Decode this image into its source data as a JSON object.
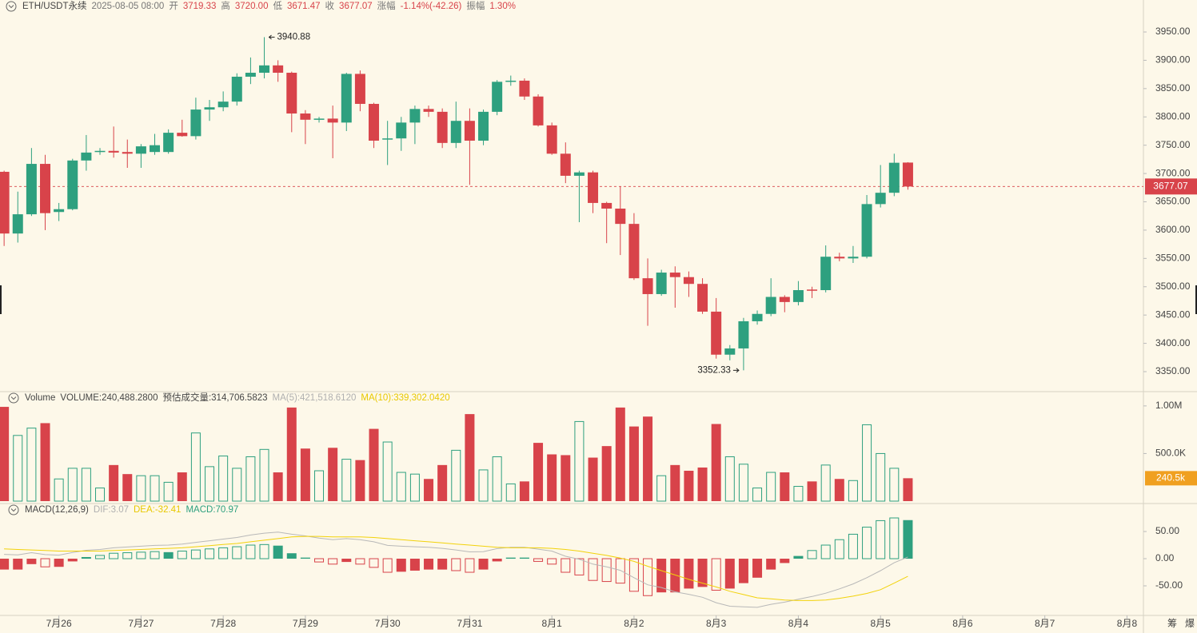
{
  "chart_data": [
    {
      "type": "candlestick",
      "header": [
        {
          "text": "ETH/USDT永续",
          "color": "#444444"
        },
        {
          "text": "2025-08-05 08:00",
          "color": "#777777"
        },
        {
          "text": "开",
          "color": "#777777"
        },
        {
          "text": "3719.33",
          "color": "#d8434a"
        },
        {
          "text": "高",
          "color": "#777777"
        },
        {
          "text": "3720.00",
          "color": "#d8434a"
        },
        {
          "text": "低",
          "color": "#777777"
        },
        {
          "text": "3671.47",
          "color": "#d8434a"
        },
        {
          "text": "收",
          "color": "#777777"
        },
        {
          "text": "3677.07",
          "color": "#d8434a"
        },
        {
          "text": "涨幅",
          "color": "#777777"
        },
        {
          "text": "-1.14%(-42.26)",
          "color": "#d8434a"
        },
        {
          "text": "振幅",
          "color": "#777777"
        },
        {
          "text": "1.30%",
          "color": "#d8434a"
        }
      ],
      "up_color": "#2ea07f",
      "down_color": "#d8434a",
      "open": [
        3703,
        3594,
        3628,
        3717,
        3632,
        3637,
        3723,
        3738,
        3740,
        3738,
        3735,
        3738,
        3738,
        3772,
        3766,
        3813,
        3817,
        3827,
        3871,
        3878,
        3891,
        3878,
        3806,
        3795,
        3797,
        3790,
        3876,
        3823,
        3761,
        3762,
        3790,
        3814,
        3809,
        3754,
        3793,
        3758,
        3809,
        3862,
        3864,
        3836,
        3785,
        3735,
        3696,
        3702,
        3648,
        3638,
        3611,
        3515,
        3487,
        3525,
        3517,
        3505,
        3456,
        3380,
        3391,
        3439,
        3452,
        3482,
        3473,
        3495,
        3494,
        3553,
        3550,
        3553,
        3646,
        3666,
        3719.33
      ],
      "high": [
        3705,
        3668,
        3745,
        3733,
        3648,
        3726,
        3768,
        3745,
        3783,
        3760,
        3752,
        3770,
        3778,
        3795,
        3834,
        3830,
        3845,
        3877,
        3905,
        3940.88,
        3900,
        3880,
        3812,
        3800,
        3820,
        3878,
        3882,
        3825,
        3793,
        3800,
        3820,
        3820,
        3815,
        3827,
        3815,
        3813,
        3865,
        3873,
        3868,
        3840,
        3790,
        3755,
        3705,
        3705,
        3650,
        3677,
        3630,
        3550,
        3530,
        3536,
        3527,
        3515,
        3480,
        3397,
        3445,
        3458,
        3515,
        3485,
        3510,
        3500,
        3573,
        3560,
        3572,
        3662,
        3715,
        3735,
        3720
      ],
      "low": [
        3572,
        3578,
        3625,
        3600,
        3616,
        3635,
        3705,
        3733,
        3728,
        3710,
        3710,
        3733,
        3735,
        3765,
        3760,
        3793,
        3810,
        3820,
        3858,
        3868,
        3862,
        3773,
        3752,
        3790,
        3727,
        3775,
        3810,
        3745,
        3715,
        3740,
        3752,
        3800,
        3745,
        3745,
        3680,
        3750,
        3803,
        3855,
        3830,
        3783,
        3733,
        3683,
        3614,
        3630,
        3577,
        3556,
        3512,
        3431,
        3484,
        3463,
        3482,
        3452,
        3373,
        3370,
        3352.33,
        3433,
        3448,
        3455,
        3467,
        3480,
        3490,
        3545,
        3542,
        3550,
        3640,
        3660,
        3671.47
      ],
      "close": [
        3594,
        3628,
        3717,
        3630,
        3637,
        3723,
        3737,
        3740,
        3737,
        3735,
        3748,
        3750,
        3772,
        3766,
        3813,
        3817,
        3827,
        3871,
        3878,
        3891,
        3878,
        3806,
        3795,
        3797,
        3790,
        3876,
        3823,
        3758,
        3762,
        3790,
        3814,
        3809,
        3754,
        3793,
        3758,
        3809,
        3862,
        3864,
        3836,
        3785,
        3735,
        3696,
        3702,
        3648,
        3638,
        3611,
        3515,
        3487,
        3525,
        3517,
        3505,
        3456,
        3380,
        3391,
        3439,
        3452,
        3482,
        3473,
        3494,
        3494,
        3553,
        3550,
        3553,
        3646,
        3666,
        3719,
        3677.07
      ],
      "ylim": [
        3314.7,
        4006.5
      ],
      "yticks": [
        {
          "value": 3350,
          "label": "3350.00"
        },
        {
          "value": 3400,
          "label": "3400.00"
        },
        {
          "value": 3450,
          "label": "3450.00"
        },
        {
          "value": 3500,
          "label": "3500.00"
        },
        {
          "value": 3550,
          "label": "3550.00"
        },
        {
          "value": 3600,
          "label": "3600.00"
        },
        {
          "value": 3650,
          "label": "3650.00"
        },
        {
          "value": 3700,
          "label": "3700.00"
        },
        {
          "value": 3750,
          "label": "3750.00"
        },
        {
          "value": 3800,
          "label": "3800.00"
        },
        {
          "value": 3850,
          "label": "3850.00"
        },
        {
          "value": 3900,
          "label": "3900.00"
        },
        {
          "value": 3950,
          "label": "3950.00"
        }
      ],
      "xlim": [
        -0.3,
        83.2
      ],
      "xticks": [
        {
          "value": 4,
          "label": "7月26"
        },
        {
          "value": 10,
          "label": "7月27"
        },
        {
          "value": 16,
          "label": "7月28"
        },
        {
          "value": 22,
          "label": "7月29"
        },
        {
          "value": 28,
          "label": "7月30"
        },
        {
          "value": 34,
          "label": "7月31"
        },
        {
          "value": 40,
          "label": "8月1"
        },
        {
          "value": 46,
          "label": "8月2"
        },
        {
          "value": 52,
          "label": "8月3"
        },
        {
          "value": 58,
          "label": "8月4"
        },
        {
          "value": 64,
          "label": "8月5"
        },
        {
          "value": 70,
          "label": "8月6"
        },
        {
          "value": 76,
          "label": "8月7"
        },
        {
          "value": 82,
          "label": "8月8"
        }
      ]
    },
    {
      "type": "volume",
      "header": [
        {
          "text": "Volume",
          "color": "#444444"
        },
        {
          "text": "VOLUME:240,488.2800",
          "color": "#444444"
        },
        {
          "text": "预估成交量:314,706.5823",
          "color": "#444444"
        },
        {
          "text": "MA(5):421,518.6120",
          "color": "#b0b0b0"
        },
        {
          "text": "MA(10):339,302.0420",
          "color": "#e8c800"
        }
      ],
      "values": [
        990000,
        690000,
        767000,
        819000,
        233000,
        345000,
        345000,
        138000,
        379000,
        284000,
        267000,
        267000,
        198000,
        302000,
        716000,
        362000,
        474000,
        345000,
        466000,
        543000,
        302000,
        983000,
        552000,
        319000,
        560000,
        440000,
        431000,
        759000,
        621000,
        302000,
        284000,
        233000,
        379000,
        534000,
        914000,
        328000,
        466000,
        181000,
        207000,
        612000,
        491000,
        483000,
        836000,
        457000,
        578000,
        983000,
        784000,
        888000,
        267000,
        379000,
        319000,
        353000,
        810000,
        466000,
        388000,
        138000,
        302000,
        302000,
        155000,
        207000,
        379000,
        233000,
        216000,
        802000,
        500000,
        345000,
        240488.28
      ],
      "value_labels": [
        null,
        null,
        null,
        null,
        null,
        null,
        null,
        null,
        null,
        null,
        null,
        null,
        null,
        null,
        null,
        null,
        null,
        null,
        null,
        null,
        null,
        null,
        null,
        null,
        null,
        null,
        null,
        null,
        null,
        null,
        null,
        null,
        null,
        null,
        null,
        null,
        null,
        null,
        null,
        null,
        null,
        null,
        null,
        null,
        null,
        null,
        null,
        null,
        null,
        null,
        null,
        null,
        null,
        null,
        null,
        null,
        null,
        null,
        null,
        null,
        null,
        null,
        null,
        null,
        null,
        null,
        "240.5k"
      ],
      "label_color": "#f0a020",
      "ylim": [
        0,
        1150000
      ],
      "yticks": [
        {
          "value": 500000,
          "label": "500.0K"
        },
        {
          "value": 1000000,
          "label": "1.00M"
        }
      ]
    },
    {
      "type": "macd",
      "header": [
        {
          "text": "MACD(12,26,9)",
          "color": "#444444"
        },
        {
          "text": "DIF:3.07",
          "color": "#b0b0b0"
        },
        {
          "text": "DEA:-32.41",
          "color": "#e8c800"
        },
        {
          "text": "MACD:70.97",
          "color": "#2ea07f"
        }
      ],
      "values": [
        -20,
        -20,
        -10,
        -15,
        -15,
        -5,
        3,
        6,
        10,
        11,
        12,
        13,
        12,
        14,
        16,
        18,
        20,
        22,
        25,
        26,
        24,
        10,
        2,
        -6,
        -10,
        -6,
        -10,
        -16,
        -25,
        -24,
        -22,
        -20,
        -20,
        -22,
        -25,
        -20,
        -5,
        2,
        2,
        -5,
        -10,
        -25,
        -30,
        -40,
        -42,
        -45,
        -60,
        -68,
        -62,
        -62,
        -55,
        -52,
        -58,
        -55,
        -45,
        -35,
        -20,
        -8,
        5,
        15,
        25,
        35,
        45,
        58,
        70,
        75,
        70.97
      ],
      "lines": [
        {
          "color": "#b8b8b8",
          "values": [
            8,
            7,
            11,
            7.5,
            6.5,
            11.5,
            15.5,
            17,
            20,
            21.5,
            23,
            24.5,
            25,
            27,
            30,
            33,
            36,
            39,
            43.5,
            47,
            49,
            45,
            42,
            38,
            35,
            37,
            35,
            31,
            24.5,
            23,
            22,
            21,
            19,
            16,
            12.5,
            13,
            18.5,
            21,
            21,
            17.5,
            14,
            4.5,
            -1,
            -10,
            -15,
            -21.5,
            -35,
            -48,
            -53,
            -61,
            -65.5,
            -71,
            -81,
            -87.5,
            -88.5,
            -89.5,
            -84,
            -80,
            -74.5,
            -69.5,
            -63.5,
            -55.5,
            -46.5,
            -35,
            -22,
            -7.5,
            3.07
          ]
        },
        {
          "color": "#f2d20a",
          "values": [
            18,
            17,
            16,
            15,
            14,
            14,
            14,
            14,
            15,
            16,
            17,
            18,
            19,
            20,
            22,
            24,
            26,
            28,
            31,
            34,
            37,
            40,
            41,
            41,
            40,
            40,
            40,
            39,
            37,
            35,
            33,
            31,
            29,
            27,
            25,
            23,
            21,
            20,
            20,
            20,
            19,
            17,
            14,
            10,
            6,
            1,
            -5,
            -14,
            -22,
            -30,
            -38,
            -45,
            -52,
            -60,
            -66,
            -72,
            -74,
            -76,
            -77,
            -77,
            -76,
            -73,
            -69,
            -64,
            -57,
            -45,
            -32.41
          ]
        }
      ],
      "ylim": [
        -104.4,
        101.5
      ],
      "yticks": [
        {
          "value": -50,
          "label": "-50.00"
        },
        {
          "value": 0,
          "label": "0.00"
        },
        {
          "value": 50,
          "label": "50.00"
        }
      ]
    }
  ],
  "toolbar": [
    "筹",
    "爆"
  ]
}
